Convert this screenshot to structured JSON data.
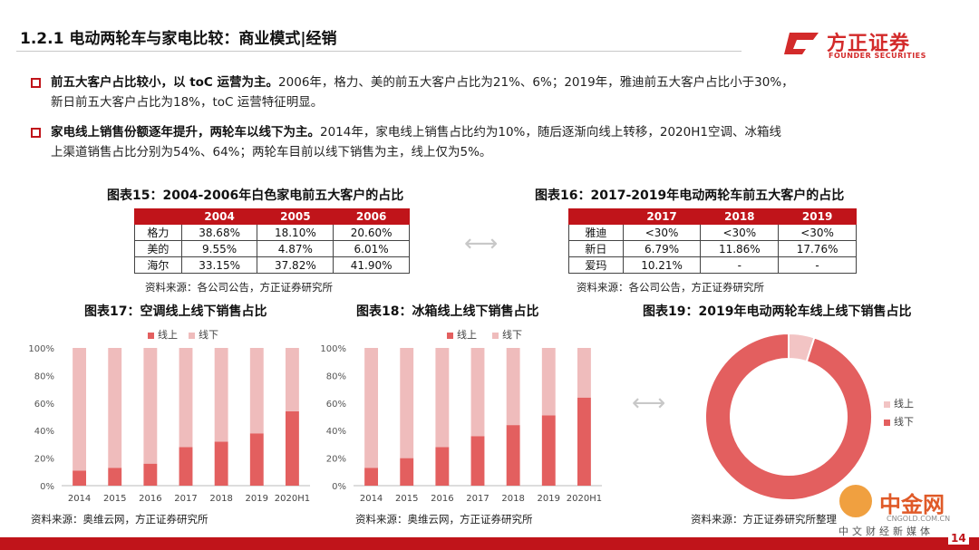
{
  "header": {
    "title": "1.2.1 电动两轮车与家电比较：商业模式|经销",
    "logo_cn": "方正证券",
    "logo_en": "FOUNDER SECURITIES"
  },
  "bullets": [
    {
      "lead": "前五大客户占比较小，以 toC 运营为主。",
      "text_line1": "2006年，格力、美的前五大客户占比为21%、6%；2019年，雅迪前五大客户占比小于30%，",
      "text_line2": "新日前五大客户占比为18%，toC 运营特征明显。"
    },
    {
      "lead": "家电线上销售份额逐年提升，两轮车以线下为主。",
      "text_line1": "2014年，家电线上销售占比约为10%，随后逐渐向线上转移，2020H1空调、冰箱线",
      "text_line2": "上渠道销售占比分别为54%、64%；两轮车目前以线下销售为主，线上仅为5%。"
    }
  ],
  "table15": {
    "title": "图表15：2004-2006年白色家电前五大客户的占比",
    "columns": [
      "",
      "2004",
      "2005",
      "2006"
    ],
    "rows": [
      [
        "格力",
        "38.68%",
        "18.10%",
        "20.60%"
      ],
      [
        "美的",
        "9.55%",
        "4.87%",
        "6.01%"
      ],
      [
        "海尔",
        "33.15%",
        "37.82%",
        "41.90%"
      ]
    ],
    "source": "资料来源：各公司公告，方正证券研究所"
  },
  "table16": {
    "title": "图表16：2017-2019年电动两轮车前五大客户的占比",
    "columns": [
      "",
      "2017",
      "2018",
      "2019"
    ],
    "rows": [
      [
        "雅迪",
        "<30%",
        "<30%",
        "<30%"
      ],
      [
        "新日",
        "6.79%",
        "11.86%",
        "17.76%"
      ],
      [
        "爱玛",
        "10.21%",
        "-",
        "-"
      ]
    ],
    "source": "资料来源：各公司公告，方正证券研究所"
  },
  "arrow_glyph": "⟷",
  "chart_data": [
    {
      "type": "bar",
      "stacked": true,
      "title": "图表17：空调线上线下销售占比",
      "categories": [
        "2014",
        "2015",
        "2016",
        "2017",
        "2018",
        "2019",
        "2020H1"
      ],
      "series": [
        {
          "name": "线上",
          "color": "#e35f5f",
          "values": [
            11,
            13,
            16,
            28,
            32,
            38,
            54
          ]
        },
        {
          "name": "线下",
          "color": "#efbcbc",
          "values": [
            89,
            87,
            84,
            72,
            68,
            62,
            46
          ]
        }
      ],
      "yticks": [
        "0%",
        "20%",
        "40%",
        "60%",
        "80%",
        "100%"
      ],
      "ylim": [
        0,
        100
      ],
      "legend": "top",
      "source": "资料来源：奥维云网，方正证券研究所"
    },
    {
      "type": "bar",
      "stacked": true,
      "title": "图表18：冰箱线上线下销售占比",
      "categories": [
        "2014",
        "2015",
        "2016",
        "2017",
        "2018",
        "2019",
        "2020H1"
      ],
      "series": [
        {
          "name": "线上",
          "color": "#e35f5f",
          "values": [
            13,
            20,
            28,
            36,
            44,
            51,
            64
          ]
        },
        {
          "name": "线下",
          "color": "#efbcbc",
          "values": [
            87,
            80,
            72,
            64,
            56,
            49,
            36
          ]
        }
      ],
      "yticks": [
        "0%",
        "20%",
        "40%",
        "60%",
        "80%",
        "100%"
      ],
      "ylim": [
        0,
        100
      ],
      "legend": "top",
      "source": "资料来源：奥维云网，方正证券研究所"
    },
    {
      "type": "pie",
      "donut": true,
      "title": "图表19：2019年电动两轮车线上线下销售占比",
      "slices": [
        {
          "name": "线上",
          "value": 5,
          "color": "#f2c4c4"
        },
        {
          "name": "线下",
          "value": 95,
          "color": "#e35f5f"
        }
      ],
      "legend": "right",
      "source": "资料来源：方正证券研究所整理"
    }
  ],
  "watermark": {
    "cn": "中金网",
    "en": "CNGOLD.COM.CN",
    "sub": "中文财经新媒体"
  },
  "page_number": "14"
}
